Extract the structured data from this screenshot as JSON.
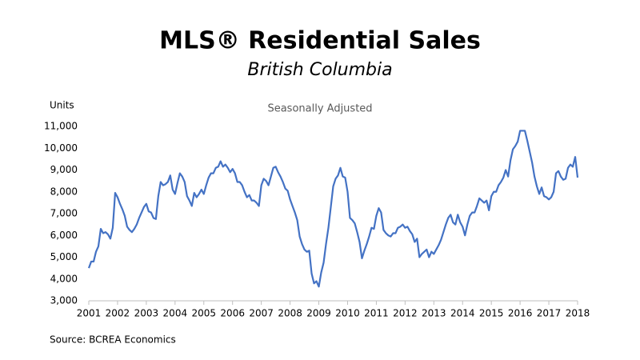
{
  "chart_data": {
    "type": "line",
    "title": "MLS® Residential Sales",
    "subtitle": "British Columbia",
    "annotation": "Seasonally Adjusted",
    "y_label": "Units",
    "source": "Source: BCREA Economics",
    "categories": [
      "2001",
      null,
      null,
      null,
      null,
      null,
      null,
      null,
      null,
      null,
      null,
      null,
      "2002",
      null,
      null,
      null,
      null,
      null,
      null,
      null,
      null,
      null,
      null,
      null,
      "2003",
      null,
      null,
      null,
      null,
      null,
      null,
      null,
      null,
      null,
      null,
      null,
      "2004",
      null,
      null,
      null,
      null,
      null,
      null,
      null,
      null,
      null,
      null,
      null,
      "2005",
      null,
      null,
      null,
      null,
      null,
      null,
      null,
      null,
      null,
      null,
      null,
      "2006",
      null,
      null,
      null,
      null,
      null,
      null,
      null,
      null,
      null,
      null,
      null,
      "2007",
      null,
      null,
      null,
      null,
      null,
      null,
      null,
      null,
      null,
      null,
      null,
      "2008",
      null,
      null,
      null,
      null,
      null,
      null,
      null,
      null,
      null,
      null,
      null,
      "2009",
      null,
      null,
      null,
      null,
      null,
      null,
      null,
      null,
      null,
      null,
      null,
      "2010",
      null,
      null,
      null,
      null,
      null,
      null,
      null,
      null,
      null,
      null,
      null,
      "2011",
      null,
      null,
      null,
      null,
      null,
      null,
      null,
      null,
      null,
      null,
      null,
      "2012",
      null,
      null,
      null,
      null,
      null,
      null,
      null,
      null,
      null,
      null,
      null,
      "2013",
      null,
      null,
      null,
      null,
      null,
      null,
      null,
      null,
      null,
      null,
      null,
      "2014",
      null,
      null,
      null,
      null,
      null,
      null,
      null,
      null,
      null,
      null,
      null,
      "2015",
      null,
      null,
      null,
      null,
      null,
      null,
      null,
      null,
      null,
      null,
      null,
      "2016",
      null,
      null,
      null,
      null,
      null,
      null,
      null,
      null,
      null,
      null,
      null,
      "2017",
      null,
      null,
      null,
      null,
      null,
      null,
      null,
      null,
      null,
      null,
      null,
      "2018"
    ],
    "values": [
      4500,
      4800,
      4800,
      5250,
      5500,
      6300,
      6100,
      6150,
      6050,
      5850,
      6350,
      7950,
      7750,
      7450,
      7200,
      6900,
      6400,
      6250,
      6150,
      6300,
      6500,
      6800,
      7050,
      7300,
      7450,
      7100,
      7050,
      6800,
      6750,
      7800,
      8450,
      8300,
      8350,
      8450,
      8750,
      8100,
      7900,
      8400,
      8850,
      8700,
      8450,
      7800,
      7600,
      7350,
      7950,
      7750,
      7900,
      8100,
      7900,
      8300,
      8650,
      8850,
      8850,
      9100,
      9150,
      9400,
      9150,
      9250,
      9100,
      8900,
      9050,
      8850,
      8450,
      8450,
      8300,
      8000,
      7750,
      7850,
      7600,
      7600,
      7500,
      7350,
      8300,
      8600,
      8500,
      8300,
      8700,
      9100,
      9150,
      8900,
      8700,
      8450,
      8150,
      8050,
      7650,
      7350,
      7050,
      6700,
      5950,
      5600,
      5350,
      5250,
      5300,
      4250,
      3800,
      3900,
      3650,
      4300,
      4750,
      5600,
      6350,
      7300,
      8250,
      8600,
      8750,
      9100,
      8700,
      8650,
      8000,
      6800,
      6700,
      6550,
      6150,
      5700,
      4950,
      5300,
      5600,
      5950,
      6350,
      6300,
      6900,
      7250,
      7050,
      6250,
      6100,
      6000,
      5950,
      6100,
      6100,
      6350,
      6400,
      6500,
      6350,
      6400,
      6200,
      6050,
      5700,
      5850,
      5000,
      5150,
      5250,
      5350,
      5000,
      5250,
      5150,
      5350,
      5550,
      5800,
      6150,
      6500,
      6800,
      6950,
      6600,
      6500,
      6950,
      6600,
      6400,
      6000,
      6500,
      6900,
      7050,
      7050,
      7350,
      7700,
      7600,
      7500,
      7600,
      7150,
      7800,
      8000,
      8000,
      8300,
      8450,
      8650,
      9000,
      8700,
      9450,
      9950,
      10100,
      10300,
      10800,
      10800,
      10800,
      10350,
      9850,
      9350,
      8700,
      8250,
      7900,
      8200,
      7800,
      7750,
      7650,
      7750,
      8000,
      8850,
      8950,
      8700,
      8550,
      8600,
      9100,
      9250,
      9150,
      9600,
      8650
    ],
    "color": "#4472c4",
    "ylim": [
      3000,
      11000
    ],
    "yticks": [
      {
        "value": 3000,
        "label": "3,000"
      },
      {
        "value": 4000,
        "label": "4,000"
      },
      {
        "value": 5000,
        "label": "5,000"
      },
      {
        "value": 6000,
        "label": "6,000"
      },
      {
        "value": 7000,
        "label": "7,000"
      },
      {
        "value": 8000,
        "label": "8,000"
      },
      {
        "value": 9000,
        "label": "9,000"
      },
      {
        "value": 10000,
        "label": "10,000"
      },
      {
        "value": 11000,
        "label": "11,000"
      }
    ],
    "grid": false
  }
}
